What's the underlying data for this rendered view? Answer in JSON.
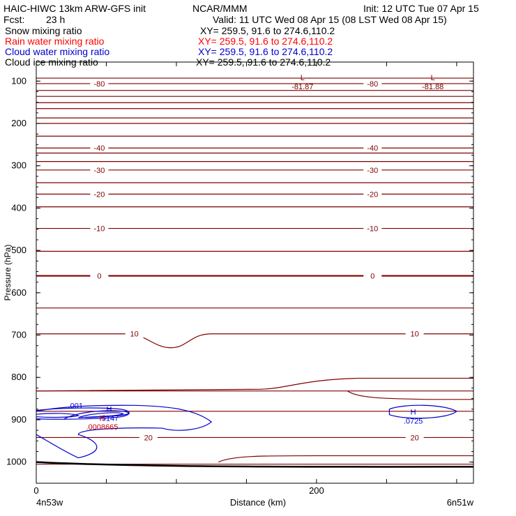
{
  "header": {
    "model": "HAIC-HIWC 13km ARW-GFS init",
    "org": "NCAR/MMM",
    "init": "Init: 12 UTC Tue 07 Apr 15",
    "fcst_label": "Fcst:",
    "fcst_value": "23 h",
    "valid": "Valid: 11 UTC Wed 08 Apr 15 (08 LST Wed 08 Apr 15)"
  },
  "fields": [
    {
      "label": "Snow mixing ratio",
      "xy": "XY= 259.5, 91.6 to 274.6,110.2",
      "color": "#000000"
    },
    {
      "label": "Rain water mixing ratio",
      "xy": "XY= 259.5, 91.6 to 274.6,110.2",
      "color": "#ff0000"
    },
    {
      "label": "Cloud water mixing ratio",
      "xy": "XY= 259.5, 91.6 to 274.6,110.2",
      "color": "#0000cc"
    },
    {
      "label": "Cloud ice mixing ratio",
      "xy": "XY= 259.5, 91.6 to 274.6,110.2",
      "color": "#000000"
    }
  ],
  "chart_data": {
    "type": "contour",
    "xlabel": "Distance (km)",
    "ylabel": "Pressure (hPa)",
    "x_tick_labels": [
      {
        "value": 0,
        "label": "0"
      },
      {
        "value": 200,
        "label": "200"
      }
    ],
    "x_range": [
      0,
      312
    ],
    "y_ticks": [
      100,
      200,
      300,
      400,
      500,
      600,
      700,
      800,
      900,
      1000
    ],
    "y_range": [
      1050,
      55
    ],
    "y_scale": "linear-reversed",
    "left_endpoint": "4n53w",
    "right_endpoint": "6n51w",
    "colors": {
      "temperature": "#7f0000",
      "cloud_water": "#0000cc",
      "rain": "#cc0000",
      "terrain": "#000000"
    },
    "temperature_contours": [
      {
        "label": "-80",
        "pressure": 106,
        "label_x": [
          45,
          240
        ]
      },
      {
        "label": "-40",
        "pressure": 258,
        "label_x": [
          45,
          240
        ]
      },
      {
        "label": "-30",
        "pressure": 310,
        "label_x": [
          45,
          240
        ]
      },
      {
        "label": "-20",
        "pressure": 367,
        "label_x": [
          45,
          240
        ]
      },
      {
        "label": "-10",
        "pressure": 448,
        "label_x": [
          45,
          240
        ]
      },
      {
        "label": "0",
        "pressure": 560,
        "label_x": [
          45,
          240
        ]
      },
      {
        "label": "10",
        "pressure": 697,
        "label_x": [
          70,
          270
        ]
      },
      {
        "label": "20",
        "pressure": 942,
        "label_x": [
          80,
          270
        ]
      }
    ],
    "temperature_lines_unlabeled": [
      93,
      122,
      136,
      151,
      165,
      187,
      200,
      230,
      270,
      290,
      340,
      397,
      502,
      636,
      832,
      880,
      1005
    ],
    "extrema": [
      {
        "symbol": "L",
        "value": "-81.87",
        "x": 190,
        "pressure": 98,
        "color": "#7f0000"
      },
      {
        "symbol": "L",
        "value": "-81.88",
        "x": 283,
        "pressure": 98,
        "color": "#7f0000"
      },
      {
        "symbol": "H",
        "value": ".5147",
        "x": 52,
        "pressure": 881,
        "color": "#0000cc"
      },
      {
        "symbol": "H",
        "value": ".0008665",
        "x": 47,
        "pressure": 902,
        "color": "#cc0000"
      },
      {
        "symbol": "H",
        "value": ".0725",
        "x": 269,
        "pressure": 888,
        "color": "#0000cc"
      }
    ],
    "cloud_water_contour_label": ".001",
    "grid": false
  }
}
